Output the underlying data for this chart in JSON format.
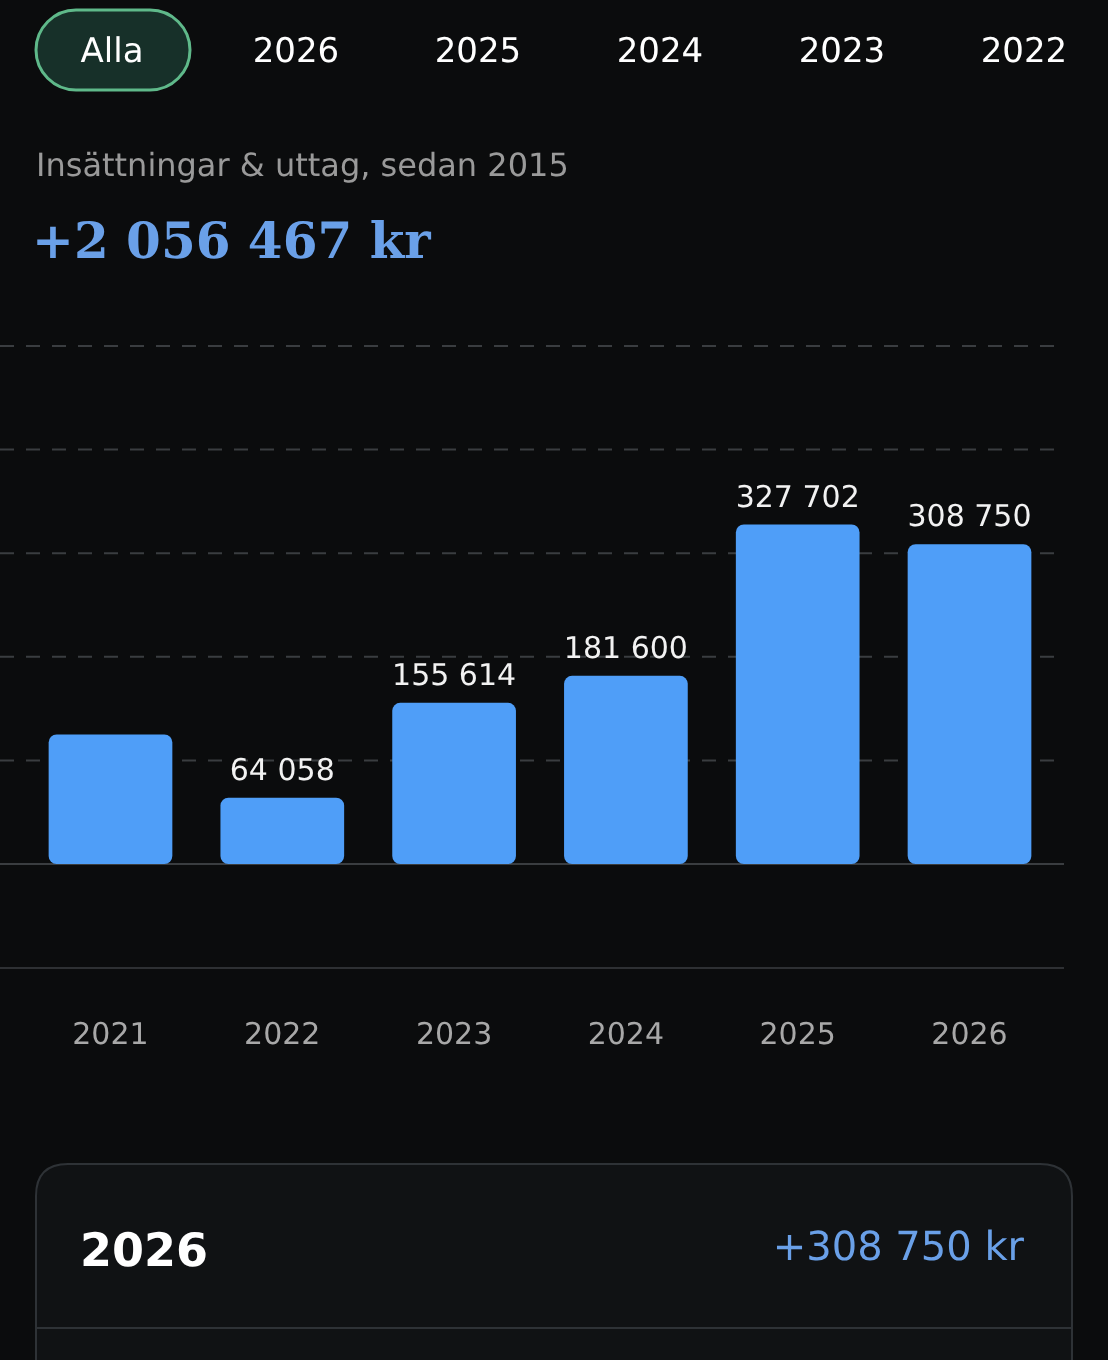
{
  "chart_data": {
    "type": "bar",
    "title": "Insättningar & uttag, sedan 2015",
    "subtitle": "+2 056 467 kr",
    "annotations": [
      "Alla",
      "2026",
      "2025",
      "2024",
      "2023",
      "2022",
      "2026",
      "+308 750 kr"
    ],
    "categories": [
      "2021",
      "2022",
      "2023",
      "2024",
      "2025",
      "2026"
    ],
    "values": [
      125000,
      64058,
      155614,
      181600,
      327702,
      308750
    ],
    "value_labels": [
      null,
      "64 058",
      "155 614",
      "181 600",
      "327 702",
      "308 750"
    ],
    "color": "#4f9ef8",
    "ylim": [
      0,
      500000
    ],
    "yticks": [
      {
        "value": 0,
        "label": null
      },
      {
        "value": 100000,
        "label": null
      },
      {
        "value": 200000,
        "label": null
      },
      {
        "value": 300000,
        "label": null
      },
      {
        "value": 400000,
        "label": null
      },
      {
        "value": 500000,
        "label": null
      }
    ],
    "grid": "y",
    "tick_labels": "x"
  }
}
